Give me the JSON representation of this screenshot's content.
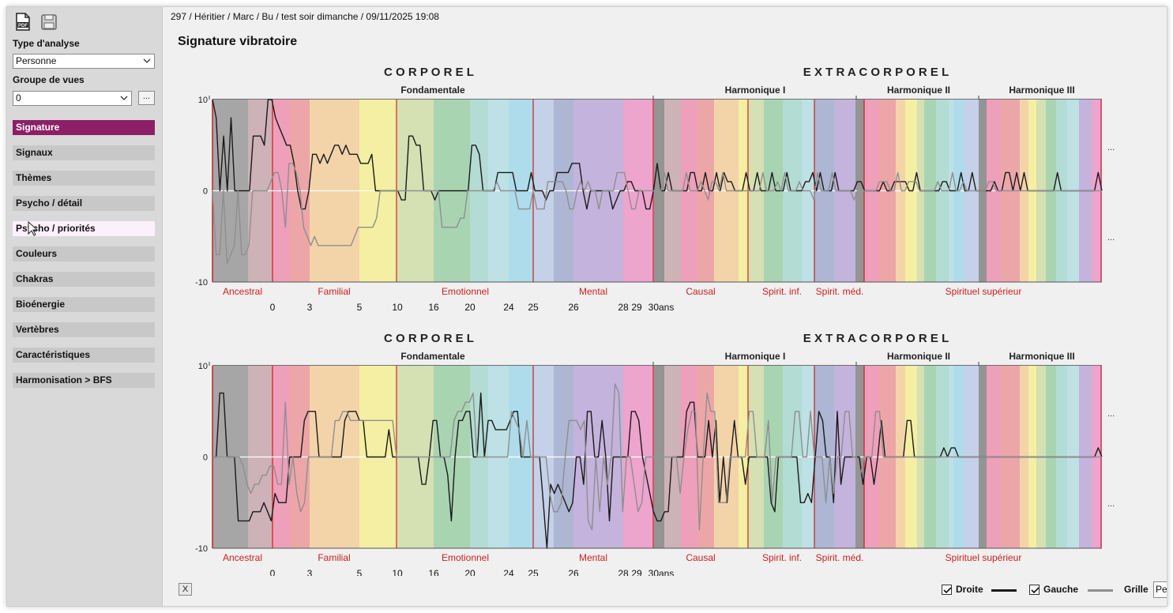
{
  "breadcrumb": "297 / Héritier / Marc / Bu  / test soir dimanche / 09/11/2025 19:08",
  "page_title": "Signature vibratoire",
  "sidebar": {
    "icons": [
      "pdf-icon",
      "save-icon"
    ],
    "analysis_type_label": "Type d'analyse",
    "analysis_type_value": "Personne",
    "view_group_label": "Groupe de vues",
    "view_group_value": "0",
    "more_button": "...",
    "items": [
      {
        "label": "Signature",
        "state": "active"
      },
      {
        "label": "Signaux",
        "state": "normal"
      },
      {
        "label": "Thèmes",
        "state": "normal"
      },
      {
        "label": "Psycho / détail",
        "state": "normal"
      },
      {
        "label": "Psycho / priorités",
        "state": "hover"
      },
      {
        "label": "Couleurs",
        "state": "normal"
      },
      {
        "label": "Chakras",
        "state": "normal"
      },
      {
        "label": "Bioénergie",
        "state": "normal"
      },
      {
        "label": "Vertèbres",
        "state": "normal"
      },
      {
        "label": "Caractéristiques",
        "state": "normal"
      },
      {
        "label": "Harmonisation > BFS",
        "state": "normal"
      }
    ],
    "accent_color": "#8d1f67"
  },
  "bottom": {
    "close_button": "X",
    "droite_label": "Droite",
    "droite_checked": true,
    "gauche_label": "Gauche",
    "gauche_checked": true,
    "grille_label": "Grille",
    "grille_value": "Pe"
  },
  "colors": {
    "droite_line": "#1a1a1a",
    "gauche_line": "#8f8f8f",
    "section_red": "#cc1f1f",
    "band_palette": [
      "#a6a6a6",
      "#cdb2b8",
      "#ee9fba",
      "#eda6a8",
      "#f3d4a9",
      "#f4efa2",
      "#d5e0b3",
      "#a9d4b2",
      "#b3dcd4",
      "#bde1e5",
      "#aedceb",
      "#c5d1e8",
      "#adb6d3",
      "#c4b3dc",
      "#eda4cd",
      "#949494"
    ]
  },
  "chart_data": [
    {
      "type": "line",
      "headings": [
        "C O R P O R E L",
        "E X T R A C O R P O R E L"
      ],
      "subheadings": [
        "Fondamentale",
        "Harmonique I",
        "Harmonique II",
        "Harmonique III"
      ],
      "sections": [
        "Ancestral",
        "Familial",
        "Emotionnel",
        "Mental",
        "Causal",
        "Spirit. inf.",
        "Spirit. méd.",
        "Spirituel supérieur"
      ],
      "age_ticks": [
        "0",
        "3",
        "5",
        "10",
        "16",
        "20",
        "24",
        "25",
        "26",
        "28",
        "29",
        "30ans"
      ],
      "yticks": [
        "10",
        "0",
        "-10"
      ],
      "ylim": [
        -10,
        10
      ],
      "right_marks": [
        "...",
        "..."
      ],
      "series": [
        {
          "name": "Droite",
          "values": [
            10,
            8,
            0,
            6,
            0,
            8,
            0,
            0,
            0,
            0,
            0,
            6,
            6,
            6,
            5,
            10,
            10,
            8,
            7,
            6,
            5,
            5,
            3,
            0,
            -2,
            -2,
            0,
            4,
            4,
            3,
            4,
            3,
            4,
            5,
            5,
            4,
            5,
            4,
            4,
            4,
            3,
            3,
            3,
            4,
            0,
            0,
            0,
            0,
            0,
            0,
            0,
            -1,
            -1,
            6,
            6,
            5,
            5,
            0,
            0,
            0,
            -1,
            0,
            0,
            0,
            0,
            0,
            0,
            0,
            0,
            0,
            5,
            5,
            4,
            0,
            0,
            0,
            0,
            2,
            2,
            2,
            2,
            2,
            0,
            0,
            0,
            0,
            2,
            0,
            0,
            0,
            -1,
            0,
            0,
            2,
            2,
            2,
            2,
            3,
            3,
            3,
            0,
            -2,
            0,
            0,
            0,
            0,
            0,
            0,
            -2,
            -1,
            0,
            0,
            1,
            1,
            0,
            0,
            0,
            -2,
            -2,
            0,
            3,
            0,
            0,
            2,
            0,
            0,
            0,
            0,
            0,
            2,
            2,
            0,
            0,
            2,
            0,
            0,
            2,
            0,
            2,
            1,
            1,
            0,
            0,
            0,
            2,
            0,
            0,
            2,
            0,
            0,
            0,
            2,
            0,
            0,
            0,
            2,
            0,
            0,
            0,
            0,
            1,
            1,
            2,
            0,
            2,
            0,
            0,
            0,
            2,
            0,
            0,
            0,
            0,
            0,
            1,
            1,
            0,
            0,
            0,
            0,
            0,
            1,
            0,
            0,
            1,
            1,
            1,
            1,
            0,
            0,
            2,
            0,
            0,
            0,
            0,
            0,
            0,
            1,
            1,
            0,
            0,
            0,
            2,
            0,
            0,
            2,
            0,
            0,
            0,
            0,
            0,
            1,
            0,
            0,
            2,
            2,
            0,
            2,
            0,
            2,
            0,
            0,
            0,
            0,
            0,
            0,
            0,
            0,
            2,
            0,
            0,
            0,
            0,
            0,
            0,
            0,
            0,
            0,
            0,
            2,
            0
          ]
        },
        {
          "name": "Gauche",
          "values": [
            0,
            -7,
            -7,
            0,
            -8,
            -7,
            -6,
            0,
            -7,
            -7,
            -6,
            0,
            0,
            0,
            0,
            0,
            1,
            2,
            2,
            0,
            -4,
            3,
            3,
            2,
            0,
            -4,
            -5,
            -6,
            -5,
            -6,
            -6,
            -6,
            -6,
            -6,
            -6,
            -6,
            -6,
            -6,
            -6,
            -5,
            -4,
            -4,
            -4,
            -4,
            -4,
            -3,
            0,
            0,
            0,
            0,
            0,
            0,
            0,
            0,
            0,
            0,
            0,
            0,
            0,
            0,
            0,
            0,
            0,
            -4,
            -4,
            -4,
            -4,
            -4,
            -3,
            -3,
            0,
            0,
            0,
            0,
            0,
            0,
            0,
            0,
            1,
            0,
            0,
            0,
            0,
            0,
            -2,
            -2,
            -2,
            -2,
            0,
            -2,
            -2,
            -2,
            1,
            1,
            1,
            1,
            1,
            0,
            -2,
            -2,
            0,
            1,
            0,
            1,
            0,
            0,
            -2,
            0,
            0,
            0,
            0,
            2,
            2,
            2,
            0,
            -2,
            -2,
            0,
            0,
            0,
            0,
            0,
            0,
            0,
            2,
            0,
            0,
            0,
            0,
            0,
            2,
            0,
            0,
            0,
            1,
            0,
            -1,
            1,
            1,
            0,
            2,
            0,
            0,
            0,
            0,
            0,
            0,
            0,
            0,
            0,
            0,
            2,
            0,
            0,
            0,
            1,
            0,
            2,
            0,
            0,
            0,
            1,
            0,
            0,
            0,
            -1,
            2,
            0,
            0,
            0,
            2,
            0,
            0,
            0,
            0,
            0,
            -1,
            0,
            0,
            0,
            0,
            0,
            0,
            1,
            1,
            1,
            0,
            0,
            2,
            0,
            0,
            1,
            1,
            1,
            0,
            0,
            0,
            0,
            0,
            1,
            0,
            0,
            0,
            2,
            0,
            0,
            1,
            0,
            0,
            0,
            0,
            0,
            0,
            1,
            1,
            0,
            0,
            0,
            0,
            0,
            0,
            0,
            0,
            0,
            0,
            0,
            0,
            0,
            0,
            0,
            0,
            0,
            0,
            0,
            0,
            0,
            0,
            0,
            0,
            0,
            0,
            0,
            0,
            0,
            0
          ]
        }
      ]
    },
    {
      "type": "line",
      "headings": [
        "C O R P O R E L",
        "E X T R A C O R P O R E L"
      ],
      "subheadings": [
        "Fondamentale",
        "Harmonique I",
        "Harmonique II",
        "Harmonique III"
      ],
      "sections": [
        "Ancestral",
        "Familial",
        "Emotionnel",
        "Mental",
        "Causal",
        "Spirit. inf.",
        "Spirit. méd.",
        "Spirituel supérieur"
      ],
      "age_ticks": [
        "0",
        "3",
        "5",
        "10",
        "16",
        "20",
        "24",
        "25",
        "26",
        "28",
        "29",
        "30ans"
      ],
      "yticks": [
        "10",
        "0",
        "-10"
      ],
      "ylim": [
        -10,
        10
      ],
      "right_marks": [
        "...",
        "..."
      ],
      "series": [
        {
          "name": "Droite",
          "values": [
            0,
            0,
            7,
            7,
            0,
            0,
            0,
            -7,
            -7,
            -7,
            -7,
            -6,
            -6,
            -6,
            -5,
            -6,
            -7,
            -4,
            -5,
            -5,
            -5,
            0,
            0,
            0,
            0,
            4,
            5,
            5,
            5,
            0,
            0,
            0,
            0,
            0,
            0,
            0,
            4,
            5,
            5,
            5,
            4,
            4,
            0,
            0,
            0,
            0,
            0,
            0,
            3,
            0,
            0,
            0,
            0,
            0,
            0,
            0,
            0,
            -3,
            -3,
            0,
            4,
            4,
            0,
            0,
            -2,
            -7,
            0,
            4,
            4,
            5,
            5,
            0,
            0,
            7,
            0,
            4,
            4,
            3,
            3,
            3,
            3,
            4,
            5,
            5,
            0,
            0,
            0,
            0,
            0,
            0,
            -5,
            -10,
            -3,
            -4,
            -3,
            -4,
            -5,
            -6,
            -5,
            0,
            0,
            -3,
            5,
            5,
            0,
            0,
            4,
            0,
            -7,
            0,
            0,
            0,
            0,
            0,
            5,
            5,
            4,
            0,
            -2,
            -4,
            -6,
            -7,
            -7,
            -6,
            -6,
            0,
            0,
            0,
            0,
            5,
            6,
            6,
            0,
            0,
            0,
            4,
            0,
            4,
            -5,
            0,
            -5,
            0,
            4,
            0,
            0,
            -3,
            0,
            0,
            0,
            0,
            0,
            0,
            -5,
            -6,
            0,
            0,
            0,
            0,
            0,
            0,
            -5,
            -5,
            -4,
            -5,
            0,
            5,
            4,
            0,
            0,
            -5,
            5,
            -3,
            0,
            0,
            0,
            0,
            0,
            -3,
            0,
            0,
            -3,
            0,
            4,
            0,
            0,
            0,
            0,
            0,
            0,
            4,
            4,
            0,
            0,
            0,
            0,
            0,
            0,
            0,
            0,
            1,
            0,
            1,
            1,
            0,
            0,
            0,
            0,
            0,
            0,
            0,
            0,
            0,
            0,
            0,
            0,
            0,
            0,
            0,
            0,
            0,
            0,
            0,
            0,
            0,
            0,
            0,
            0,
            0,
            0,
            0,
            0,
            0,
            0,
            0,
            0,
            0,
            0,
            0,
            0,
            0,
            0,
            1,
            0
          ]
        },
        {
          "name": "Gauche",
          "values": [
            0,
            0,
            0,
            0,
            0,
            0,
            0,
            0,
            -1,
            -3,
            -4,
            -3,
            -3,
            -2,
            -2,
            -1,
            -1,
            -3,
            -3,
            6,
            -3,
            0,
            -4,
            -6,
            -5,
            0,
            0,
            0,
            0,
            0,
            0,
            0,
            4,
            4,
            5,
            5,
            4,
            4,
            4,
            4,
            4,
            4,
            4,
            4,
            4,
            4,
            4,
            4,
            0,
            0,
            0,
            0,
            0,
            0,
            0,
            0,
            0,
            0,
            0,
            0,
            0,
            0,
            0,
            4,
            5,
            5,
            6,
            6,
            7,
            0,
            0,
            0,
            0,
            0,
            0,
            0,
            0,
            0,
            5,
            4,
            3,
            0,
            4,
            0,
            0,
            0,
            0,
            0,
            -4,
            -6,
            -6,
            -5,
            0,
            4,
            4,
            4,
            3,
            4,
            -7,
            -8,
            0,
            -6,
            0,
            -3,
            0,
            8,
            7,
            -6,
            0,
            0,
            -3,
            -6,
            -5,
            0,
            0,
            0,
            0,
            0,
            0,
            0,
            0,
            0,
            -4,
            0,
            3,
            5,
            5,
            -8,
            0,
            7,
            5,
            5,
            -5,
            -5,
            -5,
            0,
            0,
            0,
            0,
            0,
            5,
            5,
            0,
            0,
            0,
            4,
            -5,
            0,
            0,
            0,
            0,
            0,
            5,
            5,
            0,
            0,
            5,
            0,
            0,
            0,
            -5,
            0,
            -4,
            0,
            0,
            5,
            5,
            0,
            0,
            -2,
            0,
            0,
            0,
            5,
            5,
            0,
            0,
            0,
            0,
            0,
            0,
            0,
            0,
            0,
            0,
            0,
            0,
            0,
            0,
            0,
            0,
            0,
            0,
            0,
            0,
            0,
            0,
            0,
            0,
            0,
            0,
            0,
            0,
            0,
            0,
            0,
            0,
            0,
            0,
            0,
            0,
            0,
            0,
            0,
            0,
            0,
            0,
            0,
            0,
            0,
            0,
            0,
            0,
            0,
            0,
            0,
            0,
            0,
            0,
            0,
            0,
            0,
            0
          ]
        }
      ]
    }
  ]
}
